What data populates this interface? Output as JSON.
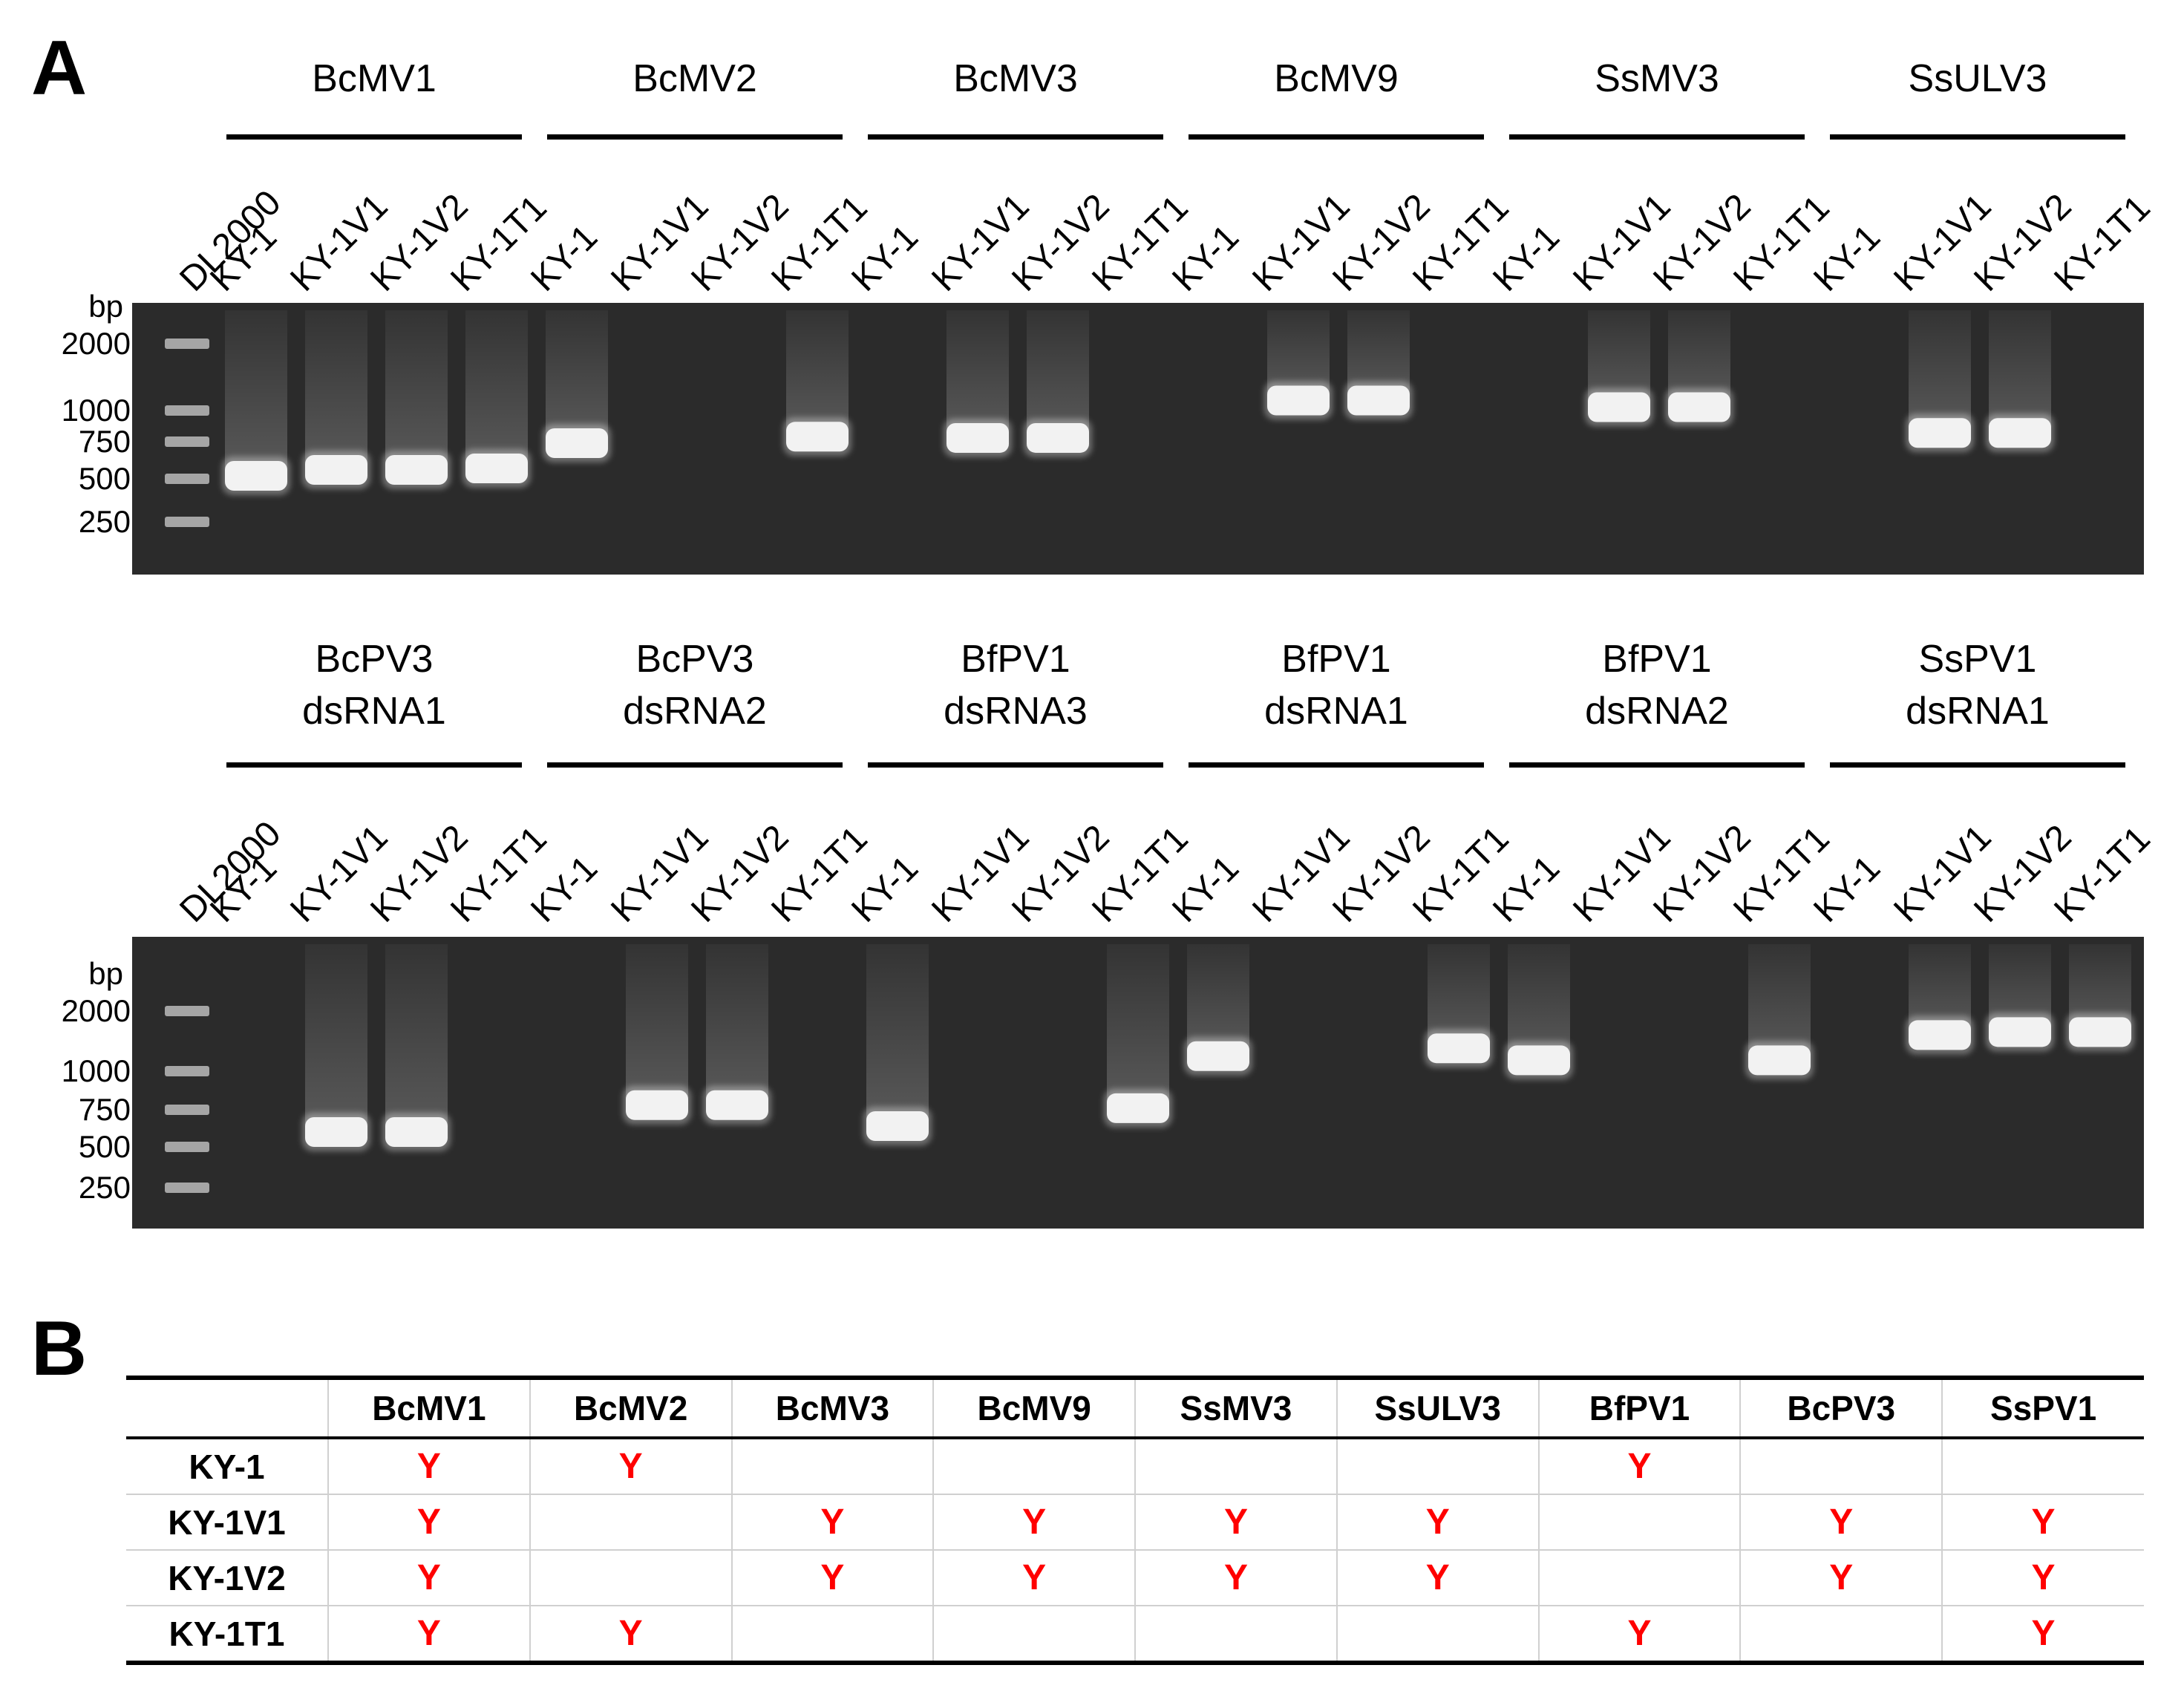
{
  "panels": {
    "a_label": "A",
    "b_label": "B"
  },
  "ladder": {
    "name": "DL2000",
    "unit": "bp",
    "sizes": [
      "2000",
      "1000",
      "750",
      "500",
      "250"
    ],
    "size_values": [
      2000,
      1000,
      750,
      500,
      250
    ]
  },
  "lanes": [
    "KY-1",
    "KY-1V1",
    "KY-1V2",
    "KY-1T1"
  ],
  "gels": [
    {
      "groups": [
        {
          "title": [
            "BcMV1"
          ],
          "band_bp": [
            520,
            560,
            560,
            570
          ]
        },
        {
          "title": [
            "BcMV2"
          ],
          "band_bp": [
            740,
            null,
            null,
            790
          ]
        },
        {
          "title": [
            "BcMV3"
          ],
          "band_bp": [
            null,
            780,
            780,
            null
          ]
        },
        {
          "title": [
            "BcMV9"
          ],
          "band_bp": [
            null,
            1150,
            1150,
            null
          ]
        },
        {
          "title": [
            "SsMV3"
          ],
          "band_bp": [
            null,
            1050,
            1050,
            null
          ]
        },
        {
          "title": [
            "SsULV3"
          ],
          "band_bp": [
            null,
            820,
            820,
            null
          ]
        }
      ]
    },
    {
      "groups": [
        {
          "title": [
            "BcPV3",
            "dsRNA1"
          ],
          "band_bp": [
            null,
            600,
            600,
            null
          ]
        },
        {
          "title": [
            "BcPV3",
            "dsRNA2"
          ],
          "band_bp": [
            null,
            780,
            780,
            null
          ]
        },
        {
          "title": [
            "BfPV1",
            "dsRNA3"
          ],
          "band_bp": [
            640,
            null,
            null,
            760
          ]
        },
        {
          "title": [
            "BfPV1",
            "dsRNA1"
          ],
          "band_bp": [
            1250,
            null,
            null,
            1380
          ]
        },
        {
          "title": [
            "BfPV1",
            "dsRNA2"
          ],
          "band_bp": [
            1180,
            null,
            null,
            1180
          ]
        },
        {
          "title": [
            "SsPV1",
            "dsRNA1"
          ],
          "band_bp": [
            null,
            1600,
            1650,
            1650
          ]
        }
      ]
    }
  ],
  "table": {
    "columns": [
      "BcMV1",
      "BcMV2",
      "BcMV3",
      "BcMV9",
      "SsMV3",
      "SsULV3",
      "BfPV1",
      "BcPV3",
      "SsPV1"
    ],
    "rows": [
      {
        "label": "KY-1",
        "cells": [
          "Y",
          "Y",
          "",
          "",
          "",
          "",
          "Y",
          "",
          ""
        ]
      },
      {
        "label": "KY-1V1",
        "cells": [
          "Y",
          "",
          "Y",
          "Y",
          "Y",
          "Y",
          "",
          "Y",
          "Y"
        ]
      },
      {
        "label": "KY-1V2",
        "cells": [
          "Y",
          "",
          "Y",
          "Y",
          "Y",
          "Y",
          "",
          "Y",
          "Y"
        ]
      },
      {
        "label": "KY-1T1",
        "cells": [
          "Y",
          "Y",
          "",
          "",
          "",
          "",
          "Y",
          "",
          "Y"
        ]
      }
    ]
  },
  "colors": {
    "gel_background": "#2b2b2b",
    "band": "#f2f2f2",
    "positive_mark": "#ff0000"
  }
}
